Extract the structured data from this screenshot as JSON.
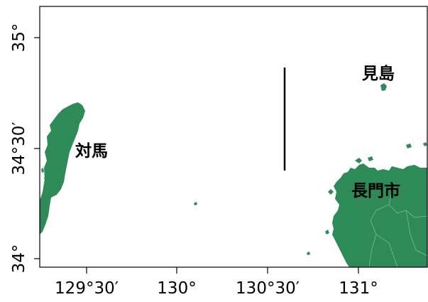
{
  "map": {
    "land_color": "#2e8b57",
    "frame_color": "#000000",
    "y_axis": {
      "ticks": [
        "35°",
        "34°30′",
        "34°"
      ]
    },
    "x_axis": {
      "ticks": [
        "129°30′",
        "130°",
        "130°30′",
        "131°"
      ]
    },
    "places": {
      "tsushima": "対馬",
      "mishima": "見島",
      "nagato": "長門市"
    },
    "features": {
      "marker_line": "vertical line segment"
    }
  }
}
